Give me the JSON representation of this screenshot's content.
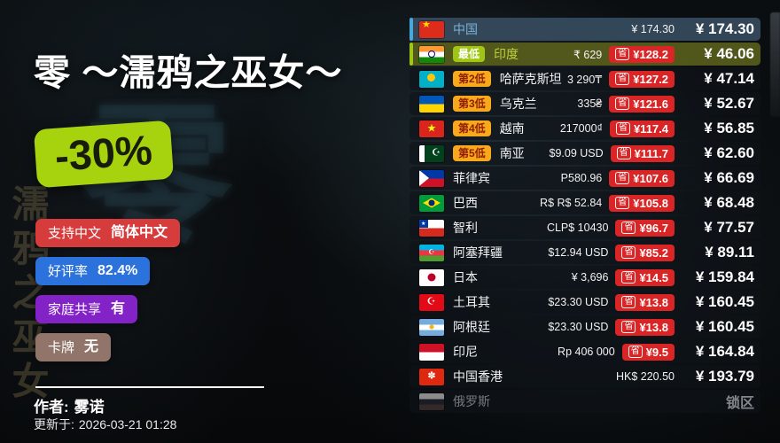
{
  "left_panel": {
    "title": "零 ～濡鸦之巫女～",
    "discount": "-30%",
    "tags": [
      {
        "label": "支持中文",
        "value": "简体中文",
        "color": "#d63c3c"
      },
      {
        "label": "好评率",
        "value": "82.4%",
        "color": "#2b72dd"
      },
      {
        "label": "家庭共享",
        "value": "有",
        "color": "#8322c6"
      },
      {
        "label": "卡牌",
        "value": "无",
        "color": "#92756a"
      }
    ],
    "author_label": "作者:",
    "author_name": "雾诺",
    "updated_label": "更新于:",
    "updated_value": "2026-03-21 01:28"
  },
  "background": {
    "logo_glyph": "零",
    "vertical_watermark": "濡鸦之巫女"
  },
  "price_list": {
    "save_prefix": "省",
    "rows": [
      {
        "flag": "cn",
        "name": "中国",
        "local": "¥ 174.30",
        "final": "¥ 174.30",
        "style": "cn"
      },
      {
        "flag": "in",
        "name": "印度",
        "rank": "最低",
        "local": "₹ 629",
        "save": "¥128.2",
        "final": "¥ 46.06",
        "style": "best"
      },
      {
        "flag": "kz",
        "name": "哈萨克斯坦",
        "rank": "第2低",
        "local": "3 290₸",
        "save": "¥127.2",
        "final": "¥ 47.14"
      },
      {
        "flag": "ua",
        "name": "乌克兰",
        "rank": "第3低",
        "local": "335₴",
        "save": "¥121.6",
        "final": "¥ 52.67"
      },
      {
        "flag": "vn",
        "name": "越南",
        "rank": "第4低",
        "local": "217000₫",
        "save": "¥117.4",
        "final": "¥ 56.85"
      },
      {
        "flag": "pk",
        "name": "南亚",
        "rank": "第5低",
        "local": "$9.09 USD",
        "save": "¥111.7",
        "final": "¥ 62.60"
      },
      {
        "flag": "ph",
        "name": "菲律宾",
        "local": "P580.96",
        "save": "¥107.6",
        "final": "¥ 66.69"
      },
      {
        "flag": "br",
        "name": "巴西",
        "local": "R$ R$ 52.84",
        "save": "¥105.8",
        "final": "¥ 68.48"
      },
      {
        "flag": "cl",
        "name": "智利",
        "local": "CLP$ 10430",
        "save": "¥96.7",
        "final": "¥ 77.57"
      },
      {
        "flag": "az",
        "name": "阿塞拜疆",
        "local": "$12.94 USD",
        "save": "¥85.2",
        "final": "¥ 89.11"
      },
      {
        "flag": "jp",
        "name": "日本",
        "local": "¥ 3,696",
        "save": "¥14.5",
        "final": "¥ 159.84"
      },
      {
        "flag": "tr",
        "name": "土耳其",
        "local": "$23.30 USD",
        "save": "¥13.8",
        "final": "¥ 160.45"
      },
      {
        "flag": "ar",
        "name": "阿根廷",
        "local": "$23.30 USD",
        "save": "¥13.8",
        "final": "¥ 160.45"
      },
      {
        "flag": "id",
        "name": "印尼",
        "local": "Rp 406 000",
        "save": "¥9.5",
        "final": "¥ 164.84"
      },
      {
        "flag": "hk",
        "name": "中国香港",
        "local": "HK$ 220.50",
        "final": "¥ 193.79"
      },
      {
        "flag": "ru",
        "name": "俄罗斯",
        "final": "锁区",
        "locked": true
      }
    ]
  },
  "colors": {
    "discount_green": "#a6d30d",
    "save_red": "#d92525",
    "rank_orange": "#f7a81b",
    "best_green": "#9fc614",
    "china_blue": "#4aa6dc"
  }
}
